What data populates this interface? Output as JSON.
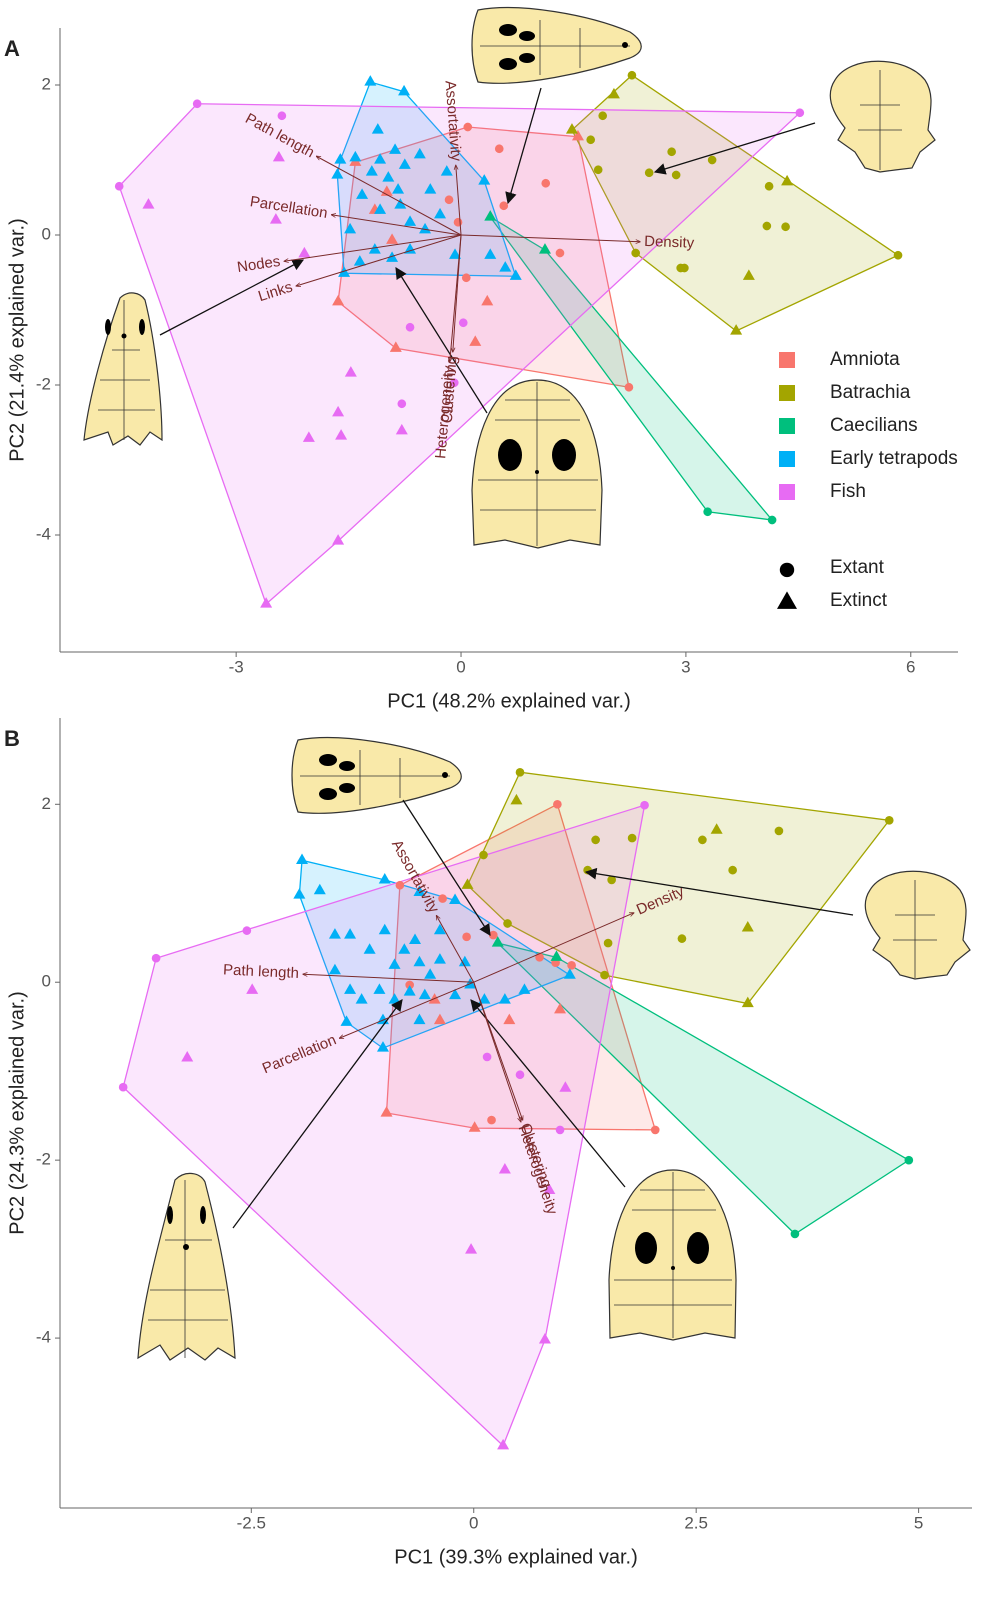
{
  "chart_data": [
    {
      "type": "scatter",
      "panel_label": "A",
      "xlabel": "PC1 (48.2% explained var.)",
      "ylabel": "PC2 (21.4% explained var.)",
      "xlim": [
        -5.35,
        6.63
      ],
      "ylim": [
        -5.56,
        2.76
      ],
      "xticks": [
        -3,
        0,
        3,
        6
      ],
      "yticks": [
        -4,
        -2,
        0,
        2
      ],
      "legend": true,
      "marker_legend": [
        {
          "label": "Extant",
          "marker": "circle"
        },
        {
          "label": "Extinct",
          "marker": "triangle"
        }
      ],
      "series": [
        {
          "name": "Amniota",
          "color": "#F8766D",
          "x": [
            0.09,
            1.56,
            2.24,
            -0.87,
            -1.64,
            -1.41,
            0.51,
            1.13,
            0.57,
            1.32,
            0.35,
            0.19,
            -0.99,
            -1.15,
            -0.92,
            -0.16,
            -0.04,
            0.07
          ],
          "y": [
            1.44,
            1.31,
            -2.03,
            -1.51,
            -0.89,
            0.97,
            1.15,
            0.69,
            0.39,
            -0.24,
            -0.89,
            -1.43,
            0.57,
            0.33,
            -0.07,
            0.47,
            0.17,
            -0.57
          ],
          "markers": [
            "circle",
            "triangle",
            "circle",
            "triangle",
            "triangle",
            "triangle",
            "circle",
            "circle",
            "circle",
            "circle",
            "triangle",
            "triangle",
            "triangle",
            "triangle",
            "triangle",
            "circle",
            "circle",
            "circle"
          ]
        },
        {
          "name": "Batrachia",
          "color": "#A3A500",
          "x": [
            2.28,
            5.83,
            3.67,
            1.48,
            2.04,
            1.89,
            1.73,
            1.83,
            2.81,
            2.51,
            2.87,
            3.35,
            4.11,
            4.35,
            4.08,
            4.33,
            2.33,
            2.93,
            2.98,
            3.84
          ],
          "y": [
            2.13,
            -0.27,
            -1.28,
            1.4,
            1.87,
            1.59,
            1.27,
            0.87,
            1.11,
            0.83,
            0.8,
            1.0,
            0.65,
            0.71,
            0.12,
            0.11,
            -0.24,
            -0.44,
            -0.44,
            -0.55
          ],
          "markers": [
            "circle",
            "circle",
            "triangle",
            "triangle",
            "triangle",
            "circle",
            "circle",
            "circle",
            "circle",
            "circle",
            "circle",
            "circle",
            "circle",
            "triangle",
            "circle",
            "circle",
            "circle",
            "circle",
            "circle",
            "triangle"
          ]
        },
        {
          "name": "Caecilians",
          "color": "#00BF7D",
          "x": [
            0.39,
            1.12,
            3.29,
            4.15
          ],
          "y": [
            0.24,
            -0.2,
            -3.69,
            -3.8
          ],
          "markers": [
            "triangle",
            "triangle",
            "circle",
            "circle"
          ]
        },
        {
          "name": "Early tetrapods",
          "color": "#00B0F6",
          "x": [
            -1.21,
            -0.76,
            0.31,
            0.73,
            -1.56,
            -1.61,
            -1.65,
            -1.41,
            -1.19,
            -1.08,
            -0.97,
            -0.84,
            -0.75,
            -1.32,
            -1.08,
            -0.81,
            -0.68,
            -0.48,
            -0.28,
            -1.48,
            -1.15,
            -0.92,
            -0.68,
            -1.35,
            -0.08,
            0.39,
            0.59,
            -1.11,
            -0.88,
            -0.55,
            -0.19,
            -0.41
          ],
          "y": [
            2.04,
            1.91,
            0.72,
            -0.55,
            -0.51,
            1.0,
            0.8,
            1.03,
            0.84,
            1.0,
            0.76,
            0.6,
            0.93,
            0.53,
            0.33,
            0.4,
            0.17,
            0.07,
            0.27,
            0.07,
            -0.2,
            -0.31,
            -0.2,
            -0.36,
            -0.27,
            -0.27,
            -0.44,
            1.4,
            1.13,
            1.07,
            0.84,
            0.6
          ],
          "markers": [
            "triangle",
            "triangle",
            "triangle",
            "triangle",
            "triangle",
            "triangle",
            "triangle",
            "triangle",
            "triangle",
            "triangle",
            "triangle",
            "triangle",
            "triangle",
            "triangle",
            "triangle",
            "triangle",
            "triangle",
            "triangle",
            "triangle",
            "triangle",
            "triangle",
            "triangle",
            "triangle",
            "triangle",
            "triangle",
            "triangle",
            "triangle",
            "triangle",
            "triangle",
            "triangle",
            "triangle",
            "triangle"
          ]
        },
        {
          "name": "Fish",
          "color": "#E76BF3",
          "x": [
            -3.52,
            -4.56,
            -2.6,
            4.52,
            -1.64,
            -2.39,
            -2.43,
            -4.17,
            -2.47,
            -2.09,
            -0.68,
            -1.47,
            -1.64,
            -2.03,
            -1.6,
            -0.79,
            -0.79,
            -0.09,
            0.03
          ],
          "y": [
            1.75,
            0.65,
            -4.92,
            1.63,
            -4.08,
            1.59,
            1.03,
            0.4,
            0.2,
            -0.25,
            -1.23,
            -1.84,
            -2.37,
            -2.71,
            -2.68,
            -2.25,
            -2.61,
            -1.97,
            -1.17
          ],
          "markers": [
            "circle",
            "circle",
            "triangle",
            "circle",
            "triangle",
            "circle",
            "triangle",
            "triangle",
            "triangle",
            "triangle",
            "circle",
            "triangle",
            "triangle",
            "triangle",
            "triangle",
            "circle",
            "triangle",
            "circle",
            "circle"
          ]
        }
      ],
      "loadings": {
        "labels": [
          "Path length",
          "Parcellation",
          "Nodes",
          "Links",
          "Density",
          "Assortativity",
          "Heterogeneity",
          "Clustering"
        ],
        "x": [
          -1.93,
          -1.73,
          -2.36,
          -2.2,
          2.39,
          -0.07,
          -0.15,
          -0.11
        ],
        "y": [
          1.05,
          0.27,
          -0.35,
          -0.68,
          -0.09,
          0.93,
          -1.69,
          -1.56
        ]
      }
    },
    {
      "type": "scatter",
      "panel_label": "B",
      "xlabel": "PC1 (39.3% explained var.)",
      "ylabel": "PC2 (24.3% explained var.)",
      "xlim": [
        -4.65,
        5.6
      ],
      "ylim": [
        -5.91,
        2.97
      ],
      "xticks": [
        -2.5,
        0,
        2.5,
        5
      ],
      "yticks": [
        -4,
        -2,
        0,
        2
      ],
      "legend": false,
      "series": [
        {
          "name": "Amniota",
          "color": "#F8766D",
          "x": [
            0.94,
            -0.98,
            2.04,
            -0.83,
            -0.35,
            -0.08,
            0.22,
            0.74,
            0.92,
            1.1,
            -0.72,
            -0.44,
            -0.38,
            0.4,
            0.97,
            0.01,
            0.2
          ],
          "y": [
            2.0,
            -1.47,
            -1.66,
            1.09,
            0.94,
            0.51,
            0.53,
            0.28,
            0.22,
            0.19,
            -0.03,
            -0.2,
            -0.43,
            -0.43,
            -0.31,
            -1.64,
            -1.55
          ],
          "markers": [
            "circle",
            "triangle",
            "circle",
            "circle",
            "circle",
            "circle",
            "circle",
            "circle",
            "circle",
            "circle",
            "circle",
            "triangle",
            "triangle",
            "triangle",
            "triangle",
            "triangle",
            "circle"
          ]
        },
        {
          "name": "Batrachia",
          "color": "#A3A500",
          "x": [
            0.52,
            4.67,
            3.08,
            1.47,
            -0.07,
            0.48,
            0.11,
            0.38,
            1.37,
            1.78,
            1.28,
            1.55,
            1.51,
            2.34,
            2.57,
            2.73,
            3.43,
            2.91,
            3.08
          ],
          "y": [
            2.36,
            1.82,
            -0.24,
            0.08,
            1.09,
            2.04,
            1.43,
            0.66,
            1.6,
            1.62,
            1.26,
            1.15,
            0.44,
            0.49,
            1.6,
            1.71,
            1.7,
            1.26,
            0.61
          ],
          "markers": [
            "circle",
            "circle",
            "triangle",
            "circle",
            "triangle",
            "triangle",
            "circle",
            "circle",
            "circle",
            "circle",
            "circle",
            "circle",
            "circle",
            "circle",
            "circle",
            "triangle",
            "circle",
            "circle",
            "triangle"
          ]
        },
        {
          "name": "Caecilians",
          "color": "#00BF7D",
          "x": [
            0.27,
            0.93,
            4.89,
            3.61
          ],
          "y": [
            0.44,
            0.28,
            -2.0,
            -2.83
          ],
          "markers": [
            "triangle",
            "triangle",
            "circle",
            "circle"
          ]
        },
        {
          "name": "Early tetrapods",
          "color": "#00B0F6",
          "x": [
            -1.93,
            -1.96,
            -1.43,
            -1.02,
            1.08,
            -0.21,
            -1.73,
            -1.56,
            -1.39,
            -1.17,
            -1.0,
            -0.89,
            -0.78,
            -0.66,
            -0.61,
            -0.49,
            -0.38,
            -1.39,
            -1.26,
            -1.06,
            -0.89,
            -0.72,
            -0.55,
            -0.21,
            -0.1,
            -0.04,
            0.12,
            0.35,
            0.57,
            -1.02,
            -0.61,
            -0.61,
            -0.38,
            -1.56,
            -1.0
          ],
          "y": [
            1.37,
            0.98,
            -0.45,
            -0.74,
            0.08,
            0.92,
            1.03,
            0.53,
            0.53,
            0.36,
            0.58,
            0.19,
            0.36,
            0.47,
            0.22,
            0.08,
            0.25,
            -0.09,
            -0.2,
            -0.09,
            -0.2,
            -0.11,
            -0.15,
            -0.15,
            0.22,
            -0.03,
            -0.2,
            -0.2,
            -0.09,
            -0.43,
            -0.43,
            1.01,
            0.58,
            0.13,
            1.15
          ],
          "markers": [
            "triangle",
            "triangle",
            "triangle",
            "triangle",
            "triangle",
            "triangle",
            "triangle",
            "triangle",
            "triangle",
            "triangle",
            "triangle",
            "triangle",
            "triangle",
            "triangle",
            "triangle",
            "triangle",
            "triangle",
            "triangle",
            "triangle",
            "triangle",
            "triangle",
            "triangle",
            "triangle",
            "triangle",
            "triangle",
            "triangle",
            "triangle",
            "triangle",
            "triangle",
            "triangle",
            "triangle",
            "triangle",
            "triangle",
            "triangle",
            "triangle"
          ]
        },
        {
          "name": "Fish",
          "color": "#E76BF3",
          "x": [
            -3.94,
            -3.57,
            1.92,
            0.33,
            -2.55,
            -2.49,
            -3.22,
            0.8,
            -0.03,
            0.85,
            0.35,
            1.03,
            0.97,
            0.52,
            0.15
          ],
          "y": [
            -1.18,
            0.27,
            1.99,
            -5.21,
            0.58,
            -0.09,
            -0.85,
            -4.02,
            -3.01,
            -2.34,
            -2.11,
            -1.19,
            -1.66,
            -1.04,
            -0.84
          ],
          "markers": [
            "circle",
            "circle",
            "circle",
            "triangle",
            "circle",
            "triangle",
            "triangle",
            "triangle",
            "triangle",
            "triangle",
            "triangle",
            "triangle",
            "circle",
            "circle",
            "circle"
          ]
        }
      ],
      "loadings": {
        "labels": [
          "Density",
          "Assortativity",
          "Path  length",
          "Parcellation",
          "Clustering",
          "Heterogeneity"
        ],
        "x": [
          1.8,
          -0.42,
          -1.92,
          -1.51,
          0.55,
          0.53
        ],
        "y": [
          0.78,
          0.75,
          0.09,
          -0.63,
          -1.55,
          -1.57
        ]
      }
    }
  ]
}
